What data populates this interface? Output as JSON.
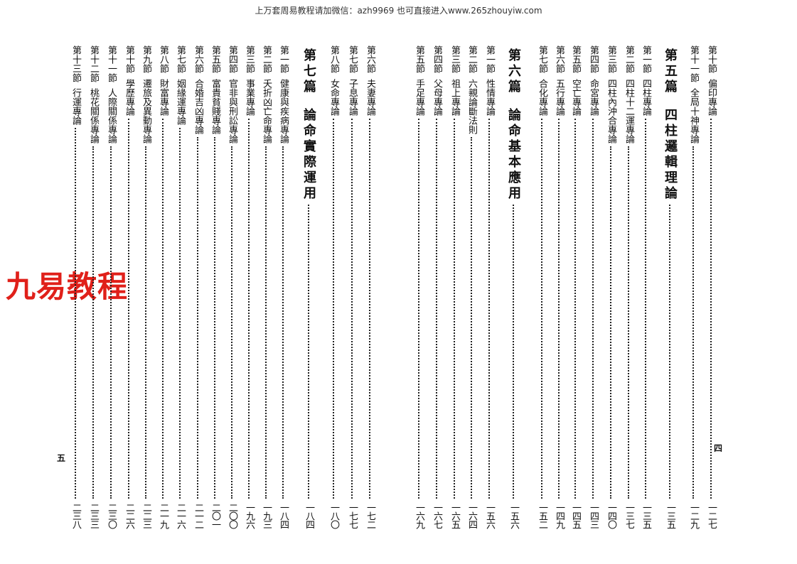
{
  "banner": "上万套周易教程请加微信：azh9969   也可直接进入www.265zhouyiw.com",
  "watermark": "九易教程",
  "watermark_color": "#e0201a",
  "right_page": {
    "folio": "四",
    "entries": [
      {
        "label": "第十節",
        "title": "偏印專論",
        "page": "一二七"
      },
      {
        "label": "第十一節",
        "title": "全局十神專論",
        "page": "一二九"
      },
      {
        "label": "第五篇",
        "title": "四柱邏輯理論",
        "page": "一三五",
        "part": true
      },
      {
        "label": "第一節",
        "title": "四柱專論",
        "page": "一三五"
      },
      {
        "label": "第二節",
        "title": "四柱十二運專論",
        "page": "一三七"
      },
      {
        "label": "第三節",
        "title": "四柱內沖合專論",
        "page": "一四〇"
      },
      {
        "label": "第四節",
        "title": "命宮專論",
        "page": "一四三"
      },
      {
        "label": "第五節",
        "title": "空亡專論",
        "page": "一四五"
      },
      {
        "label": "第六節",
        "title": "五行專論",
        "page": "一四九"
      },
      {
        "label": "第七節",
        "title": "合化專論",
        "page": "一五二"
      },
      {
        "label": "第六篇",
        "title": "論命基本應用",
        "page": "一五六",
        "part": true
      },
      {
        "label": "第一節",
        "title": "性情專論",
        "page": "一五六"
      },
      {
        "label": "第二節",
        "title": "六親論斷法則",
        "page": "一六四"
      },
      {
        "label": "第三節",
        "title": "祖上專論",
        "page": "一六五"
      },
      {
        "label": "第四節",
        "title": "父母專論",
        "page": "一六七"
      },
      {
        "label": "第五節",
        "title": "手足專論",
        "page": "一六九"
      }
    ]
  },
  "left_page": {
    "folio": "五",
    "entries": [
      {
        "label": "第六節",
        "title": "夫妻專論",
        "page": "一七二"
      },
      {
        "label": "第七節",
        "title": "子息專論",
        "page": "一七七"
      },
      {
        "label": "第八節",
        "title": "女命專論",
        "page": "一八〇"
      },
      {
        "label": "第七篇",
        "title": "論命實際運用",
        "page": "一八四",
        "part": true
      },
      {
        "label": "第一節",
        "title": "健康與疾病專論",
        "page": "一八四"
      },
      {
        "label": "第二節",
        "title": "夭折凶亡命專論",
        "page": "一九三"
      },
      {
        "label": "第三節",
        "title": "事業專論",
        "page": "一九六"
      },
      {
        "label": "第四節",
        "title": "官非與刑訟專論",
        "page": "二〇〇"
      },
      {
        "label": "第五節",
        "title": "富貴貧賤專論",
        "page": "二〇一"
      },
      {
        "label": "第六節",
        "title": "合婚吉凶專論",
        "page": "二一二"
      },
      {
        "label": "第七節",
        "title": "姻緣運專論",
        "page": "二一六"
      },
      {
        "label": "第八節",
        "title": "財富專論",
        "page": "二一九"
      },
      {
        "label": "第九節",
        "title": "遷旅及異動專論",
        "page": "二二三"
      },
      {
        "label": "第十節",
        "title": "學歷專論",
        "page": "二二六"
      },
      {
        "label": "第十一節",
        "title": "人際關係專論",
        "page": "二三〇"
      },
      {
        "label": "第十二節",
        "title": "桃花關係專論",
        "page": "二三三"
      },
      {
        "label": "第十三節",
        "title": "行運專論",
        "page": "二三八"
      }
    ]
  }
}
